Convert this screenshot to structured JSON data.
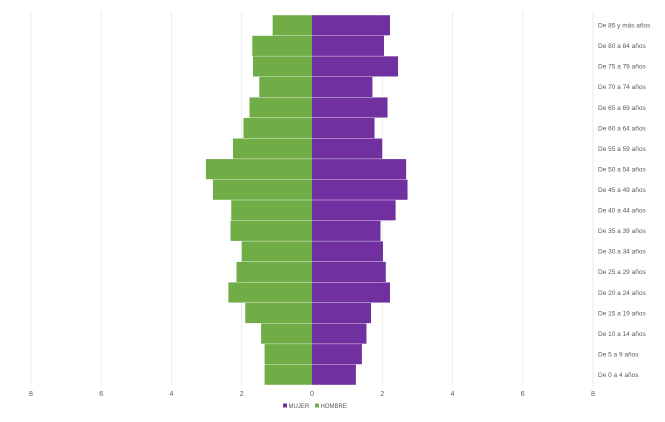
{
  "chart_data": {
    "type": "bar",
    "orientation": "horizontal",
    "categories": [
      "De 0 a 4 años",
      "De 5 a 9 años",
      "De 10 a 14 años",
      "De 15 a 19 años",
      "De 20 a 24 años",
      "De 25 a 29 años",
      "De 30 a 34 años",
      "De 35 a 39 años",
      "De 40 a 44 años",
      "De 45 a 49 años",
      "De 50 a 54 años",
      "De 55 a 59 años",
      "De 60 a 64 años",
      "De 65 a 69 años",
      "De 70 a 74 años",
      "De 75 a 79 años",
      "De 80 a 84 años",
      "De 85 y más años"
    ],
    "series": [
      {
        "name": "MUJER",
        "color": "#7030a0",
        "values": [
          1.25,
          1.42,
          1.55,
          1.68,
          2.22,
          2.1,
          2.02,
          1.95,
          2.38,
          2.72,
          2.68,
          2.0,
          1.78,
          2.15,
          1.72,
          2.45,
          2.05,
          2.22
        ]
      },
      {
        "name": "HOMBRE",
        "color": "#70ad47",
        "values": [
          1.35,
          1.35,
          1.45,
          1.9,
          2.38,
          2.15,
          2.0,
          2.32,
          2.3,
          2.82,
          3.02,
          2.25,
          1.95,
          1.78,
          1.5,
          1.68,
          1.7,
          1.12
        ]
      }
    ],
    "xlim": [
      -8,
      8
    ],
    "x_ticks": [
      -8,
      -6,
      -4,
      -2,
      0,
      2,
      4,
      6,
      8
    ],
    "x_tick_labels": [
      "8",
      "6",
      "4",
      "2",
      "0",
      "2",
      "4",
      "6",
      "8"
    ],
    "grid": true,
    "legend_position": "bottom"
  }
}
